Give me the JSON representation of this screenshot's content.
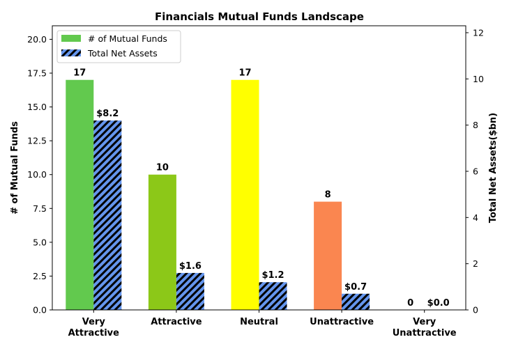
{
  "chart_data": {
    "type": "bar",
    "title": "Financials Mutual Funds Landscape",
    "categories": [
      [
        "Very",
        "Attractive"
      ],
      [
        "Attractive"
      ],
      [
        "Neutral"
      ],
      [
        "Unattractive"
      ],
      [
        "Very",
        "Unattractive"
      ]
    ],
    "y_left": {
      "label": "# of Mutual Funds",
      "lim": [
        0,
        21
      ],
      "ticks": [
        "0.0",
        "2.5",
        "5.0",
        "7.5",
        "10.0",
        "12.5",
        "15.0",
        "17.5",
        "20.0"
      ]
    },
    "y_right": {
      "label": "Total Net Assets($bn)",
      "lim": [
        0,
        12.3
      ],
      "ticks": [
        "0",
        "2",
        "4",
        "6",
        "8",
        "10",
        "12"
      ]
    },
    "series": [
      {
        "name": "# of Mutual Funds",
        "axis": "left",
        "values": [
          17,
          10,
          17,
          8,
          0
        ],
        "labels": [
          "17",
          "10",
          "17",
          "8",
          "0"
        ],
        "colors": [
          "#62c94e",
          "#8cc818",
          "#ffff00",
          "#fa8650",
          "#e8402c"
        ],
        "legend_color": "#62c94e"
      },
      {
        "name": "Total Net Assets",
        "axis": "right",
        "values": [
          8.2,
          1.6,
          1.2,
          0.7,
          0.0
        ],
        "labels": [
          "$8.2",
          "$1.6",
          "$1.2",
          "$0.7",
          "$0.0"
        ],
        "color": "#6495ed",
        "hatch": "diagonal"
      }
    ],
    "legend": "top-left",
    "grid": false
  }
}
